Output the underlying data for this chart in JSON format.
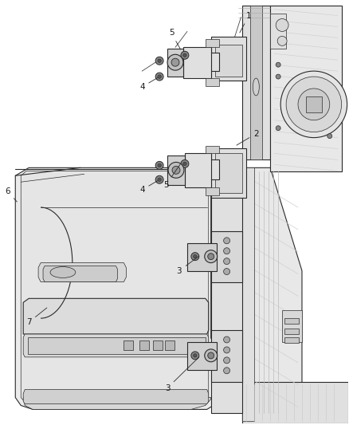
{
  "bg_color": "#ffffff",
  "fig_width": 4.38,
  "fig_height": 5.33,
  "dpi": 100,
  "line_color": "#2a2a2a",
  "label_fontsize": 7.5,
  "label_color": "#1a1a1a",
  "fill_light": "#f0f0f0",
  "fill_mid": "#e0e0e0",
  "fill_dark": "#c8c8c8",
  "fill_stripe": "#d8d8d8"
}
